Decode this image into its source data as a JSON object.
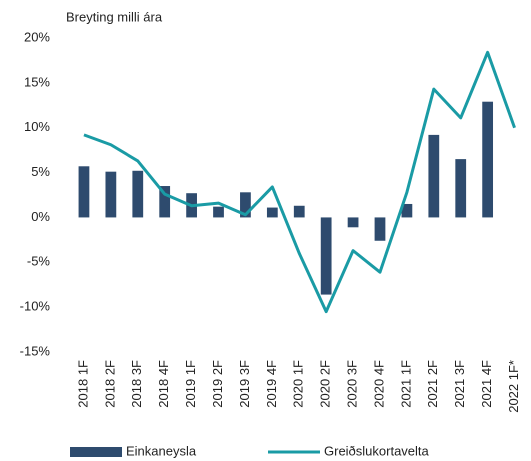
{
  "chart_data": {
    "type": "bar",
    "y_label": "Breyting milli ára",
    "categories": [
      "2018 1F",
      "2018 2F",
      "2018 3F",
      "2018 4F",
      "2019 1F",
      "2019 2F",
      "2019 3F",
      "2019 4F",
      "2020 1F",
      "2020 2F",
      "2020 3F",
      "2020 4F",
      "2021 1F",
      "2021 2F",
      "2021 3F",
      "2021 4F",
      "2022 1F*"
    ],
    "series": [
      {
        "name": "Einkaneysla",
        "type": "bar",
        "color": "#2e4b6e",
        "values": [
          5.7,
          5.1,
          5.2,
          3.5,
          2.7,
          1.2,
          2.8,
          1.1,
          1.3,
          -8.6,
          -1.1,
          -2.6,
          1.5,
          9.2,
          6.5,
          12.9,
          null
        ]
      },
      {
        "name": "Greiðslukortavelta",
        "type": "line",
        "color": "#1a9ba5",
        "values": [
          9.2,
          8.1,
          6.3,
          2.6,
          1.3,
          1.6,
          0.3,
          3.4,
          -4.0,
          -10.5,
          -3.7,
          -6.1,
          2.8,
          14.3,
          11.1,
          18.4,
          10.0
        ]
      }
    ],
    "ylim": [
      -15,
      20
    ],
    "yticks": [
      {
        "value": -15,
        "label": "-15%"
      },
      {
        "value": -10,
        "label": "-10%"
      },
      {
        "value": -5,
        "label": "-5%"
      },
      {
        "value": 0,
        "label": "0%"
      },
      {
        "value": 5,
        "label": "5%"
      },
      {
        "value": 10,
        "label": "10%"
      },
      {
        "value": 15,
        "label": "15%"
      },
      {
        "value": 20,
        "label": "20%"
      }
    ],
    "grid": false
  }
}
